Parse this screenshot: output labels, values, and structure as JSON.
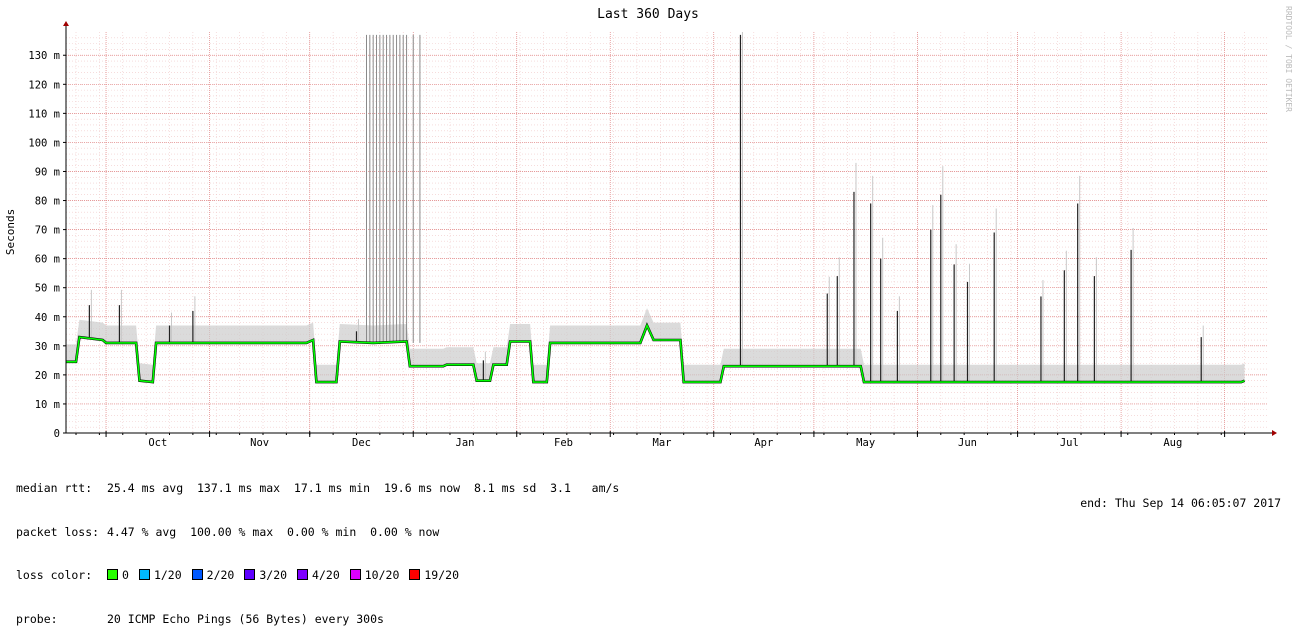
{
  "chart_data": {
    "type": "line",
    "title": "Last 360 Days",
    "ylabel": "Seconds",
    "watermark": "RRDTOOL / TOBI OETIKER",
    "ylim": [
      0,
      0.138
    ],
    "yticks": [
      0,
      0.01,
      0.02,
      0.03,
      0.04,
      0.05,
      0.06,
      0.07,
      0.08,
      0.09,
      0.1,
      0.11,
      0.12,
      0.13
    ],
    "ytick_labels": [
      "0",
      "10 m",
      "20 m",
      "30 m",
      "40 m",
      "50 m",
      "60 m",
      "70 m",
      "80 m",
      "90 m",
      "100 m",
      "110 m",
      "120 m",
      "130 m"
    ],
    "xlim": [
      "2016-09-19",
      "2017-09-14"
    ],
    "month_ticks": [
      {
        "date": "2016-10-01",
        "label": "Oct"
      },
      {
        "date": "2016-11-01",
        "label": "Nov"
      },
      {
        "date": "2016-12-01",
        "label": "Dec"
      },
      {
        "date": "2017-01-01",
        "label": "Jan"
      },
      {
        "date": "2017-02-01",
        "label": "Feb"
      },
      {
        "date": "2017-03-01",
        "label": "Mar"
      },
      {
        "date": "2017-04-01",
        "label": "Apr"
      },
      {
        "date": "2017-05-01",
        "label": "May"
      },
      {
        "date": "2017-06-01",
        "label": "Jun"
      },
      {
        "date": "2017-07-01",
        "label": "Jul"
      },
      {
        "date": "2017-08-01",
        "label": "Aug"
      },
      {
        "date": "2017-09-01",
        "label": ""
      }
    ],
    "grid": true,
    "series": [
      {
        "name": "median rtt",
        "color": "#00ff00",
        "points": [
          [
            "2016-09-19",
            0.0245
          ],
          [
            "2016-09-22",
            0.0245
          ],
          [
            "2016-09-23",
            0.033
          ],
          [
            "2016-09-30",
            0.032
          ],
          [
            "2016-10-01",
            0.031
          ],
          [
            "2016-10-10",
            0.031
          ],
          [
            "2016-10-11",
            0.018
          ],
          [
            "2016-10-15",
            0.0175
          ],
          [
            "2016-10-16",
            0.031
          ],
          [
            "2016-10-31",
            0.031
          ],
          [
            "2016-11-30",
            0.031
          ],
          [
            "2016-12-02",
            0.032
          ],
          [
            "2016-12-03",
            0.0175
          ],
          [
            "2016-12-09",
            0.0175
          ],
          [
            "2016-12-10",
            0.0315
          ],
          [
            "2016-12-20",
            0.031
          ],
          [
            "2016-12-30",
            0.0315
          ],
          [
            "2016-12-31",
            0.023
          ],
          [
            "2017-01-10",
            0.023
          ],
          [
            "2017-01-11",
            0.0235
          ],
          [
            "2017-01-19",
            0.0235
          ],
          [
            "2017-01-20",
            0.018
          ],
          [
            "2017-01-24",
            0.018
          ],
          [
            "2017-01-25",
            0.0235
          ],
          [
            "2017-01-29",
            0.0235
          ],
          [
            "2017-01-30",
            0.0315
          ],
          [
            "2017-02-05",
            0.0315
          ],
          [
            "2017-02-06",
            0.0175
          ],
          [
            "2017-02-10",
            0.0175
          ],
          [
            "2017-02-11",
            0.031
          ],
          [
            "2017-03-10",
            0.031
          ],
          [
            "2017-03-12",
            0.037
          ],
          [
            "2017-03-14",
            0.032
          ],
          [
            "2017-03-22",
            0.032
          ],
          [
            "2017-03-23",
            0.0175
          ],
          [
            "2017-04-03",
            0.0175
          ],
          [
            "2017-04-04",
            0.023
          ],
          [
            "2017-05-15",
            0.023
          ],
          [
            "2017-05-16",
            0.0175
          ],
          [
            "2017-09-06",
            0.0175
          ],
          [
            "2017-09-07",
            0.018
          ]
        ]
      }
    ],
    "spikes": [
      [
        "2016-09-26",
        0.044
      ],
      [
        "2016-10-05",
        0.044
      ],
      [
        "2016-10-20",
        0.037
      ],
      [
        "2016-10-27",
        0.042
      ],
      [
        "2016-12-15",
        0.035
      ],
      [
        "2017-01-22",
        0.025
      ],
      [
        "2017-04-09",
        0.137
      ],
      [
        "2017-05-05",
        0.048
      ],
      [
        "2017-05-08",
        0.054
      ],
      [
        "2017-05-13",
        0.083
      ],
      [
        "2017-05-18",
        0.079
      ],
      [
        "2017-05-21",
        0.06
      ],
      [
        "2017-05-26",
        0.042
      ],
      [
        "2017-06-05",
        0.07
      ],
      [
        "2017-06-08",
        0.082
      ],
      [
        "2017-06-12",
        0.058
      ],
      [
        "2017-06-16",
        0.052
      ],
      [
        "2017-06-24",
        0.069
      ],
      [
        "2017-07-08",
        0.047
      ],
      [
        "2017-07-15",
        0.056
      ],
      [
        "2017-07-19",
        0.079
      ],
      [
        "2017-07-24",
        0.054
      ],
      [
        "2017-08-04",
        0.063
      ],
      [
        "2017-08-25",
        0.033
      ]
    ],
    "loss_spikes": [
      [
        "2016-12-18",
        0.137
      ],
      [
        "2016-12-19",
        0.137
      ],
      [
        "2016-12-20",
        0.137
      ],
      [
        "2016-12-21",
        0.137
      ],
      [
        "2016-12-22",
        0.137
      ],
      [
        "2016-12-23",
        0.137
      ],
      [
        "2016-12-24",
        0.137
      ],
      [
        "2016-12-25",
        0.137
      ],
      [
        "2016-12-26",
        0.137
      ],
      [
        "2016-12-27",
        0.137
      ],
      [
        "2016-12-28",
        0.137
      ],
      [
        "2016-12-29",
        0.137
      ],
      [
        "2016-12-30",
        0.137
      ],
      [
        "2017-01-01",
        0.137
      ],
      [
        "2017-01-03",
        0.137
      ]
    ],
    "smoke_color": "#cccccc",
    "median_line_color": "#000000"
  },
  "legend": {
    "median_rtt": {
      "label": "median rtt:",
      "text": "25.4 ms avg  137.1 ms max  17.1 ms min  19.6 ms now  8.1 ms sd  3.1   am/s"
    },
    "packet_loss": {
      "label": "packet loss:",
      "text": "4.47 % avg  100.00 % max  0.00 % min  0.00 % now"
    },
    "loss_color": {
      "label": "loss color:",
      "items": [
        {
          "label": "0",
          "color": "#26ff00"
        },
        {
          "label": "1/20",
          "color": "#00b8ff"
        },
        {
          "label": "2/20",
          "color": "#0059ff"
        },
        {
          "label": "3/20",
          "color": "#5e00ff"
        },
        {
          "label": "4/20",
          "color": "#7e00ff"
        },
        {
          "label": "10/20",
          "color": "#dd00ff"
        },
        {
          "label": "19/20",
          "color": "#ff0000"
        }
      ]
    },
    "probe": {
      "label": "probe:",
      "text": "20 ICMP Echo Pings (56 Bytes) every 300s"
    }
  },
  "end_text": "end: Thu Sep 14 06:05:07 2017"
}
